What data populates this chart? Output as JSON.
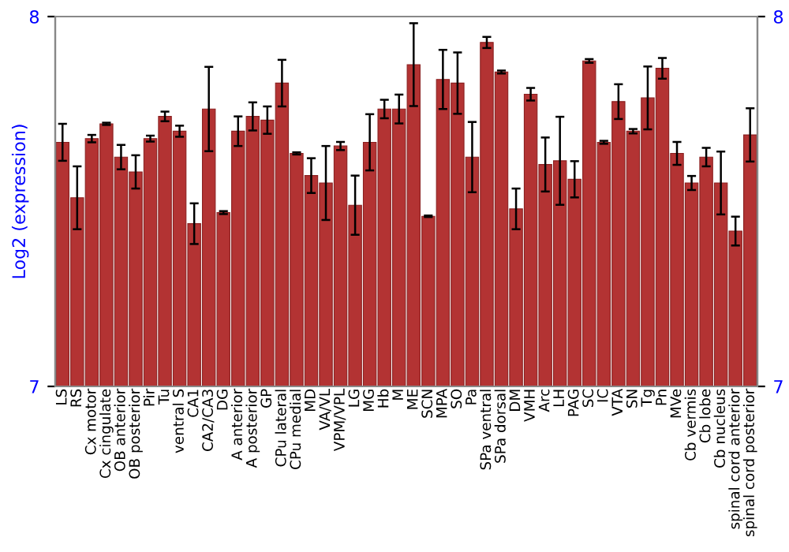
{
  "chart_data": {
    "type": "bar",
    "ylabel": "Log2 (expression)",
    "categories": [
      "LS",
      "RS",
      "Cx motor",
      "Cx cingulate",
      "OB anterior",
      "OB posterior",
      "Pir",
      "Tu",
      "ventral S",
      "CA1",
      "CA2/CA3",
      "DG",
      "A anterior",
      "A posterior",
      "GP",
      "CPu lateral",
      "CPu medial",
      "MD",
      "VA/VL",
      "VPM/VPL",
      "LG",
      "MG",
      "Hb",
      "M",
      "ME",
      "SCN",
      "MPA",
      "SO",
      "Pa",
      "SPa ventral",
      "SPa dorsal",
      "DM",
      "VMH",
      "Arc",
      "LH",
      "PAG",
      "SC",
      "IC",
      "VTA",
      "SN",
      "Tg",
      "Pn",
      "MVe",
      "Cb vermis",
      "Cb lobe",
      "Cb nucleus",
      "spinal cord anterior",
      "spinal cord posterior"
    ],
    "values": [
      7.66,
      7.51,
      7.67,
      7.71,
      7.62,
      7.58,
      7.67,
      7.73,
      7.69,
      7.44,
      7.75,
      7.47,
      7.69,
      7.73,
      7.72,
      7.82,
      7.63,
      7.57,
      7.55,
      7.65,
      7.49,
      7.66,
      7.75,
      7.75,
      7.87,
      7.46,
      7.83,
      7.82,
      7.62,
      7.93,
      7.85,
      7.48,
      7.79,
      7.6,
      7.61,
      7.56,
      7.88,
      7.66,
      7.77,
      7.69,
      7.78,
      7.86,
      7.63,
      7.55,
      7.62,
      7.55,
      7.42,
      7.68
    ],
    "errors": [
      0.05,
      0.085,
      0.01,
      0.003,
      0.033,
      0.045,
      0.008,
      0.013,
      0.015,
      0.055,
      0.114,
      0.004,
      0.04,
      0.038,
      0.037,
      0.063,
      0.003,
      0.047,
      0.1,
      0.011,
      0.08,
      0.076,
      0.025,
      0.039,
      0.112,
      0.002,
      0.08,
      0.083,
      0.095,
      0.015,
      0.004,
      0.055,
      0.017,
      0.073,
      0.119,
      0.049,
      0.005,
      0.004,
      0.047,
      0.006,
      0.085,
      0.028,
      0.031,
      0.019,
      0.025,
      0.085,
      0.039,
      0.072
    ],
    "color": "#b33333",
    "ylim": [
      7,
      8
    ],
    "yticks": [
      7,
      8
    ],
    "y2lim": [
      7,
      8
    ],
    "y2ticks": [
      7,
      8
    ],
    "grid": false,
    "legend": false
  }
}
